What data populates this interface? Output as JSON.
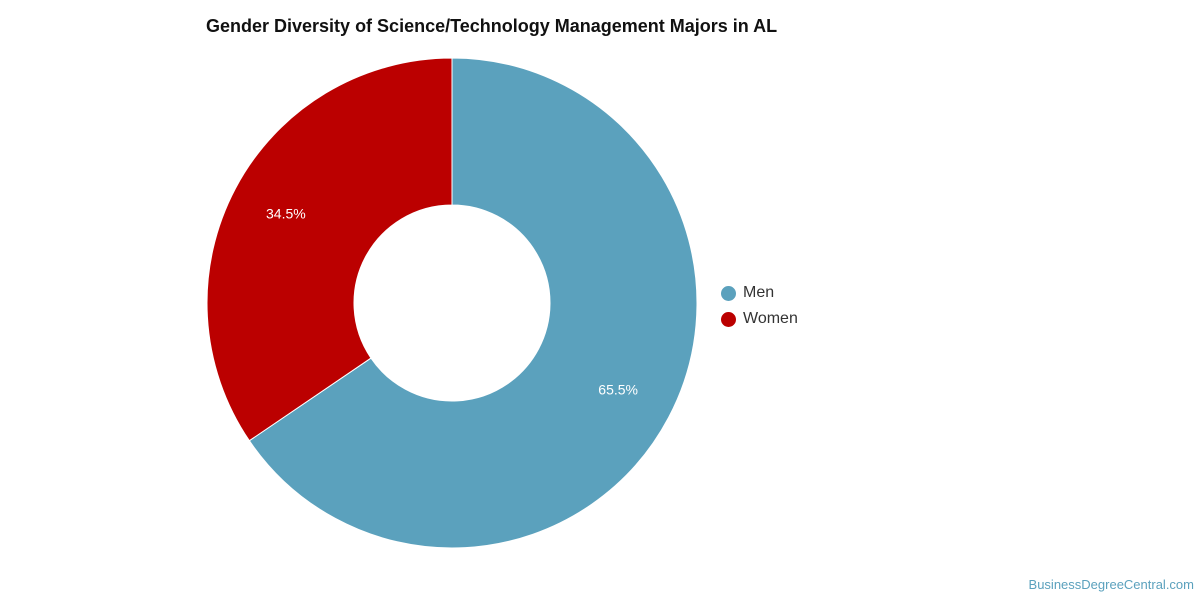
{
  "chart_data": {
    "type": "pie",
    "title": "Gender Diversity of Science/Technology Management Majors in AL",
    "categories": [
      "Men",
      "Women"
    ],
    "values": [
      65.5,
      34.5
    ],
    "value_labels": [
      "65.5%",
      "34.5%"
    ],
    "colors": [
      "#5ba1bd",
      "#bb0000"
    ],
    "donut": true,
    "legend_position": "right"
  },
  "legend": {
    "items": [
      {
        "label": "Men",
        "color": "#5ba1bd"
      },
      {
        "label": "Women",
        "color": "#bb0000"
      }
    ]
  },
  "watermark": "BusinessDegreeCentral.com"
}
